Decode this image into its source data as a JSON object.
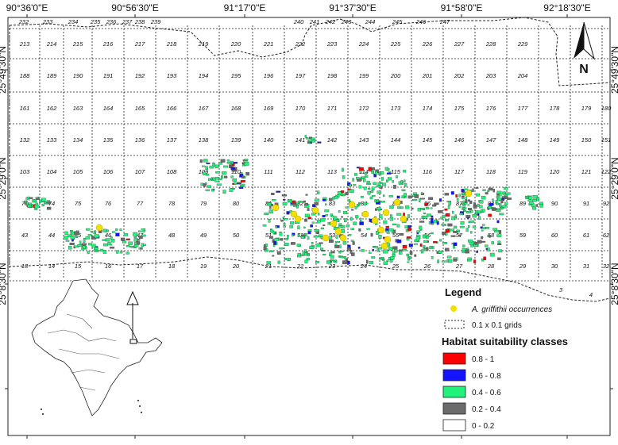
{
  "map": {
    "top_labels": [
      "90°36'0\"E",
      "90°56'30\"E",
      "91°17'0\"E",
      "91°37'30\"E",
      "91°58'0\"E",
      "92°18'30\"E"
    ],
    "left_labels": [
      "25°49'30\"N",
      "25°29'0\"N",
      "25°8'30\"N"
    ],
    "right_labels": [
      "25°49'30\"N",
      "25°29'0\"N",
      "25°8'30\"N"
    ],
    "north_arrow": "N",
    "grid_rows": [
      [
        "213",
        "214",
        "215",
        "216",
        "217",
        "218",
        "219",
        "220",
        "221",
        "222",
        "223",
        "224",
        "225",
        "226",
        "227",
        "228",
        "229"
      ],
      [
        "188",
        "189",
        "190",
        "191",
        "192",
        "193",
        "194",
        "195",
        "196",
        "197",
        "198",
        "199",
        "200",
        "201",
        "202",
        "203",
        "204"
      ],
      [
        "161",
        "162",
        "163",
        "164",
        "165",
        "166",
        "167",
        "168",
        "169",
        "170",
        "171",
        "172",
        "173",
        "174",
        "175",
        "176",
        "177",
        "178",
        "179",
        "180"
      ],
      [
        "132",
        "133",
        "134",
        "135",
        "136",
        "137",
        "138",
        "139",
        "140",
        "141",
        "142",
        "143",
        "144",
        "145",
        "146",
        "147",
        "148",
        "149",
        "150",
        "151"
      ],
      [
        "103",
        "104",
        "105",
        "106",
        "107",
        "108",
        "109",
        "110",
        "111",
        "112",
        "113",
        "114",
        "115",
        "116",
        "117",
        "118",
        "119",
        "120",
        "121",
        "122"
      ],
      [
        "73",
        "74",
        "75",
        "76",
        "77",
        "78",
        "79",
        "80",
        "81",
        "82",
        "83",
        "84",
        "85",
        "86",
        "87",
        "88",
        "89",
        "90",
        "91",
        "92"
      ],
      [
        "43",
        "44",
        "45",
        "46",
        "47",
        "48",
        "49",
        "50",
        "51",
        "52",
        "53",
        "54",
        "55",
        "56",
        "57",
        "58",
        "59",
        "60",
        "61",
        "62"
      ],
      [
        "13",
        "14",
        "15",
        "16",
        "17",
        "18",
        "19",
        "20",
        "21",
        "22",
        "23",
        "24",
        "25",
        "26",
        "27",
        "28",
        "29",
        "30",
        "31",
        "32"
      ]
    ],
    "top_edge_labels": [
      "232",
      "233",
      "234",
      "235",
      "236",
      "237",
      "238",
      "239",
      "240",
      "241",
      "242",
      "243",
      "244",
      "245",
      "246",
      "247"
    ],
    "bottom_edge_labels": [
      "3",
      "4"
    ]
  },
  "legend": {
    "title": "Legend",
    "occurrence_label": "A. griffithii occurrences",
    "grid_label": "0.1 x 0.1 grids",
    "classes_title": "Habitat suitability classes",
    "classes": [
      {
        "label": "0.8 - 1",
        "color": "#ff0000"
      },
      {
        "label": "0.6 - 0.8",
        "color": "#1414ff"
      },
      {
        "label": "0.4 - 0.6",
        "color": "#22f27a"
      },
      {
        "label": "0.2 - 0.4",
        "color": "#6b6b6b"
      },
      {
        "label": "0 - 0.2",
        "color": "#ffffff"
      }
    ],
    "occurrence_color": "#f2e100"
  }
}
